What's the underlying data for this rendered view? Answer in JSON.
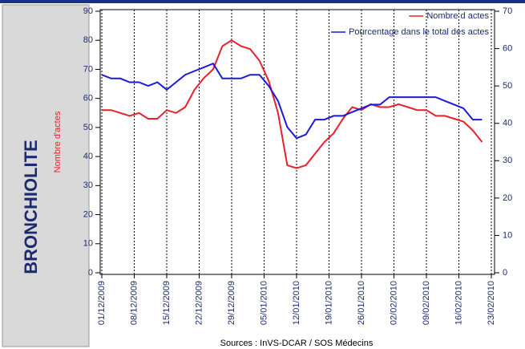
{
  "panel_label": "BRONCHIOLITE",
  "chart_data": {
    "type": "line",
    "ylabel": "Nombre d'actes",
    "source": "Sources : InVS-DCAR / SOS Médecins",
    "x": [
      "01/12/2009",
      "03/12/2009",
      "05/12/2009",
      "07/12/2009",
      "09/12/2009",
      "11/12/2009",
      "13/12/2009",
      "15/12/2009",
      "17/12/2009",
      "19/12/2009",
      "21/12/2009",
      "23/12/2009",
      "25/12/2009",
      "27/12/2009",
      "29/12/2009",
      "31/12/2009",
      "02/01/2010",
      "04/01/2010",
      "06/01/2010",
      "08/01/2010",
      "10/01/2010",
      "12/01/2010",
      "14/01/2010",
      "16/01/2010",
      "18/01/2010",
      "20/01/2010",
      "22/01/2010",
      "24/01/2010",
      "26/01/2010",
      "28/01/2010",
      "30/01/2010",
      "01/02/2010",
      "03/02/2010",
      "05/02/2010",
      "07/02/2010",
      "09/02/2010",
      "11/02/2010",
      "13/02/2010",
      "15/02/2010",
      "17/02/2010",
      "19/02/2010",
      "21/02/2010"
    ],
    "series": [
      {
        "name": "Nombre d actes",
        "color": "#e8202a",
        "values": [
          56,
          56,
          55,
          54,
          55,
          53,
          53,
          56,
          55,
          57,
          63,
          67,
          70,
          78,
          80,
          78,
          77,
          73,
          66,
          55,
          37,
          36,
          37,
          41,
          45,
          48,
          53,
          57,
          56,
          58,
          57,
          57,
          58,
          57,
          56,
          56,
          54,
          54,
          53,
          52,
          49,
          45
        ]
      },
      {
        "name": "Pourcentage dans le total des actes",
        "color": "#1a1adc",
        "axis": "y2",
        "values": [
          53,
          52,
          52,
          51,
          51,
          50,
          51,
          49,
          51,
          53,
          54,
          55,
          56,
          52,
          52,
          52,
          53,
          53,
          50,
          46,
          39,
          36,
          37,
          41,
          41,
          42,
          42,
          43,
          44,
          45,
          45,
          47,
          47,
          47,
          47,
          47,
          47,
          46,
          45,
          44,
          41,
          41
        ]
      }
    ],
    "xlim": [
      "01/12/2009",
      "23/02/2010"
    ],
    "xticks": [
      "01/12/2009",
      "08/12/2009",
      "15/12/2009",
      "22/12/2009",
      "29/12/2009",
      "05/01/2010",
      "12/01/2010",
      "19/01/2010",
      "26/01/2010",
      "02/02/2010",
      "09/02/2010",
      "16/02/2010",
      "23/02/2010"
    ],
    "ylim": [
      0,
      90
    ],
    "yticks": [
      0,
      10,
      20,
      30,
      40,
      50,
      60,
      70,
      80,
      90
    ],
    "y2lim": [
      0,
      70
    ],
    "y2ticks": [
      0,
      10,
      20,
      30,
      40,
      50,
      60,
      70
    ],
    "grid": "x",
    "legend": "top-right"
  }
}
